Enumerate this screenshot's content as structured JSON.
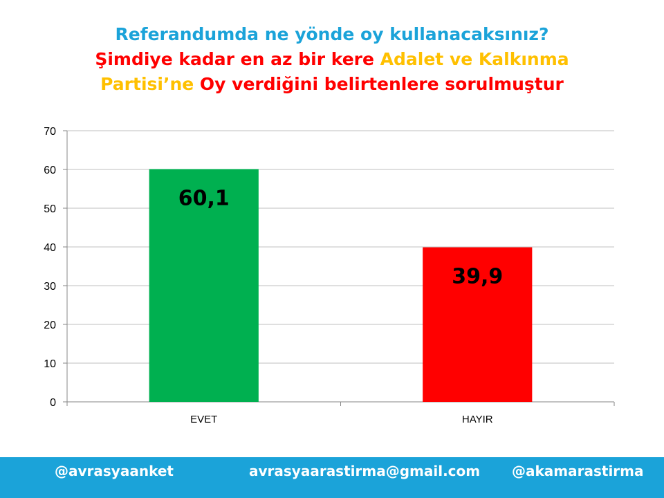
{
  "title": {
    "line1": [
      {
        "text": "Referandumda  ne  yönde  oy  kullanacaksınız?",
        "color": "#1ba3d9"
      }
    ],
    "line2": [
      {
        "text": "Şimdiye  kadar  en  az  bir  kere  ",
        "color": "#ff0000"
      },
      {
        "text": "Adalet  ve  Kalkınma",
        "color": "#ffc000"
      }
    ],
    "line3": [
      {
        "text": "Partisi’ne  ",
        "color": "#ffc000"
      },
      {
        "text": "Oy  verdiğini  belirtenlere  sorulmuştur",
        "color": "#ff0000"
      }
    ]
  },
  "chart_data": {
    "type": "bar",
    "categories": [
      "EVET",
      "HAYIR"
    ],
    "values": [
      60.1,
      39.9
    ],
    "data_labels": [
      "60,1",
      "39,9"
    ],
    "bar_colors": [
      "#00b050",
      "#ff0000"
    ],
    "yticks": [
      "0",
      "10",
      "20",
      "30",
      "40",
      "50",
      "60",
      "70"
    ],
    "ylim": [
      0,
      70
    ],
    "grid": true,
    "legend": "none"
  },
  "footer": {
    "left": "@avrasyaanket",
    "center": "avrasyaarastirma@gmail.com",
    "right": "@akamarastirma",
    "background": "#1ba3d9"
  }
}
